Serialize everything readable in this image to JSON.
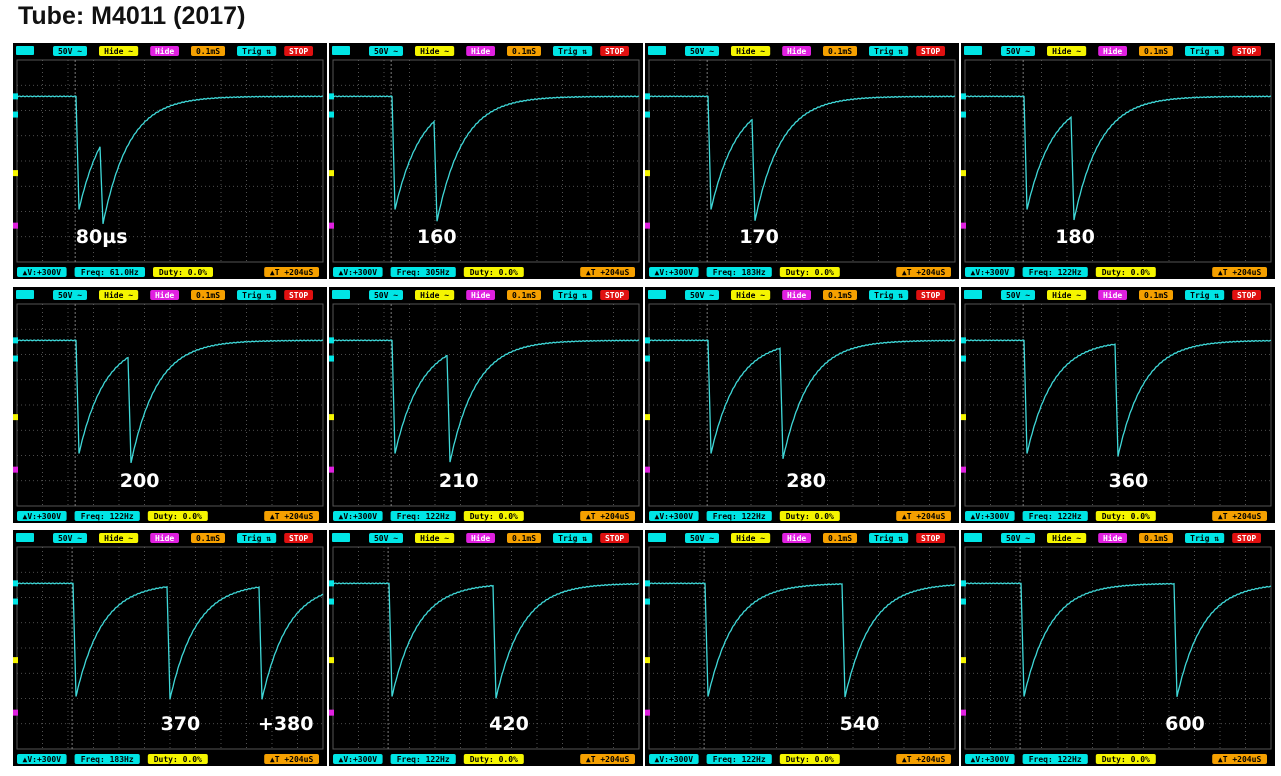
{
  "header": {
    "title": "Tube: M4011 (2017)"
  },
  "toolbar": [
    "50V ~",
    "Hide ~",
    "Hide",
    "0.1mS",
    "Trig ⇅",
    "STOP"
  ],
  "panels": [
    {
      "labels": [
        "80µs"
      ],
      "status": [
        "▲V:+300V",
        "Freq: 61.0Hz",
        "Duty: 0.0%",
        "▲T +204uS"
      ]
    },
    {
      "labels": [
        "160"
      ],
      "status": [
        "▲V:+300V",
        "Freq: 305Hz",
        "Duty: 0.0%",
        "▲T +204uS"
      ]
    },
    {
      "labels": [
        "170"
      ],
      "status": [
        "▲V:+300V",
        "Freq: 183Hz",
        "Duty: 0.0%",
        "▲T +204uS"
      ]
    },
    {
      "labels": [
        "180"
      ],
      "status": [
        "▲V:+300V",
        "Freq: 122Hz",
        "Duty: 0.0%",
        "▲T +204uS"
      ]
    },
    {
      "labels": [
        "200"
      ],
      "status": [
        "▲V:+300V",
        "Freq: 122Hz",
        "Duty: 0.0%",
        "▲T +204uS"
      ]
    },
    {
      "labels": [
        "210"
      ],
      "status": [
        "▲V:+300V",
        "Freq: 122Hz",
        "Duty: 0.0%",
        "▲T +204uS"
      ]
    },
    {
      "labels": [
        "280"
      ],
      "status": [
        "▲V:+300V",
        "Freq: 122Hz",
        "Duty: 0.0%",
        "▲T +204uS"
      ]
    },
    {
      "labels": [
        "360"
      ],
      "status": [
        "▲V:+300V",
        "Freq: 122Hz",
        "Duty: 0.0%",
        "▲T +204uS"
      ]
    },
    {
      "labels": [
        "370",
        "+380"
      ],
      "status": [
        "▲V:+300V",
        "Freq: 183Hz",
        "Duty: 0.0%",
        "▲T +204uS"
      ]
    },
    {
      "labels": [
        "420"
      ],
      "status": [
        "▲V:+300V",
        "Freq: 122Hz",
        "Duty: 0.0%",
        "▲T +204uS"
      ]
    },
    {
      "labels": [
        "540"
      ],
      "status": [
        "▲V:+300V",
        "Freq: 122Hz",
        "Duty: 0.0%",
        "▲T +204uS"
      ]
    },
    {
      "labels": [
        "600"
      ],
      "status": [
        "▲V:+300V",
        "Freq: 122Hz",
        "Duty: 0.0%",
        "▲T +204uS"
      ]
    }
  ]
}
